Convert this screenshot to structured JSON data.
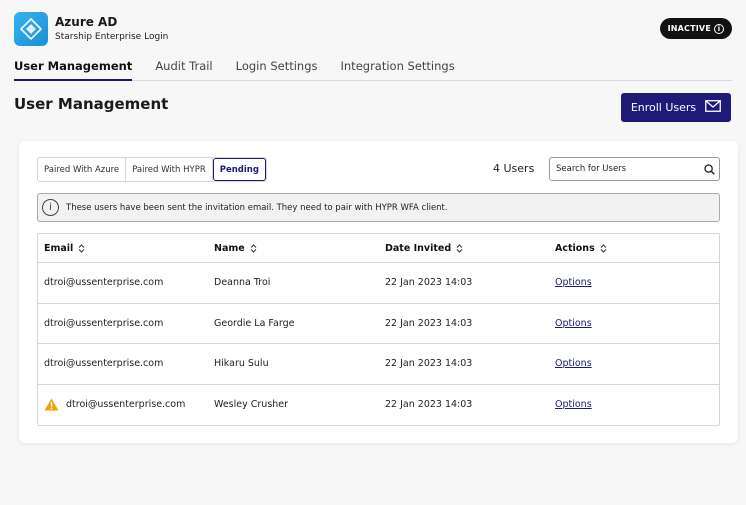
{
  "app": {
    "name": "Azure AD",
    "subtitle": "Starship Enterprise Login",
    "status": "INACTIVE"
  },
  "tabs": [
    {
      "label": "User Management",
      "active": true
    },
    {
      "label": "Audit Trail",
      "active": false
    },
    {
      "label": "Login Settings",
      "active": false
    },
    {
      "label": "Integration Settings",
      "active": false
    }
  ],
  "page": {
    "title": "User Management",
    "enroll_label": "Enroll Users"
  },
  "filters": [
    {
      "label": "Paired With Azure",
      "active": false
    },
    {
      "label": "Paired With HYPR",
      "active": false
    },
    {
      "label": "Pending",
      "active": true
    }
  ],
  "user_count": "4 Users",
  "search": {
    "placeholder": "Search for Users"
  },
  "notice": "These users have been sent the invitation email. They need to pair with HYPR WFA client.",
  "table": {
    "columns": [
      "Email",
      "Name",
      "Date Invited",
      "Actions"
    ],
    "rows": [
      {
        "email": "dtroi@ussenterprise.com",
        "name": "Deanna Troi",
        "date": "22 Jan 2023 14:03",
        "action": "Options",
        "warning": false
      },
      {
        "email": "dtroi@ussenterprise.com",
        "name": "Geordie La Farge",
        "date": "22 Jan 2023 14:03",
        "action": "Options",
        "warning": false
      },
      {
        "email": "dtroi@ussenterprise.com",
        "name": "Hikaru Sulu",
        "date": "22 Jan 2023 14:03",
        "action": "Options",
        "warning": false
      },
      {
        "email": "dtroi@ussenterprise.com",
        "name": "Wesley Crusher",
        "date": "22 Jan 2023 14:03",
        "action": "Options",
        "warning": true
      }
    ]
  },
  "colors": {
    "accent": "#1f1a78",
    "warning": "#f0a30a",
    "logo": "#29a6e8"
  },
  "icons": [
    "azure-logo-icon",
    "info-icon",
    "envelope-icon",
    "search-icon",
    "sort-icon",
    "warning-icon"
  ]
}
